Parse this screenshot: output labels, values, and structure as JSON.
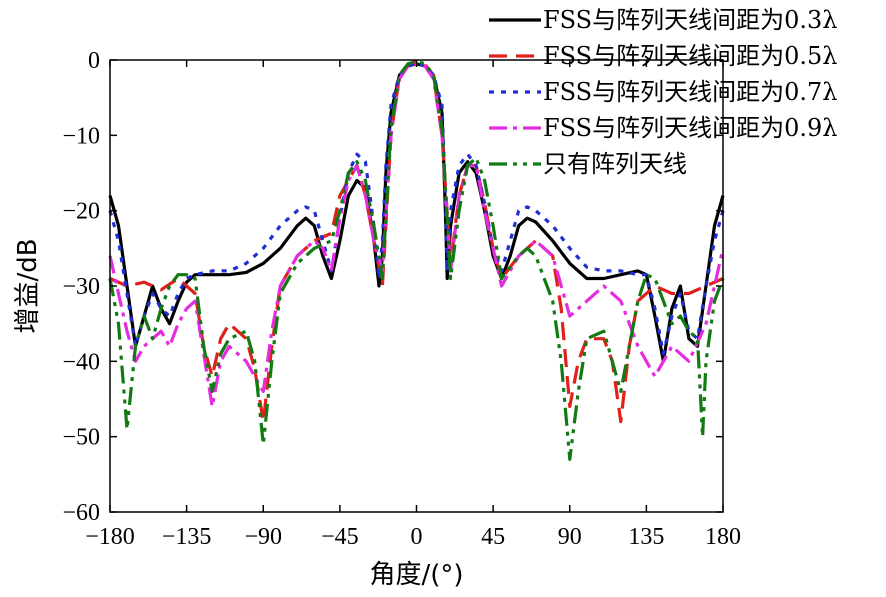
{
  "chart_data": {
    "type": "line",
    "xlabel": "角度/(°)",
    "ylabel": "增益/dB",
    "xlim": [
      -180,
      180
    ],
    "ylim": [
      -60,
      0
    ],
    "xticks": [
      "−180",
      "−135",
      "−90",
      "−45",
      "0",
      "45",
      "90",
      "135",
      "180"
    ],
    "xtick_values": [
      -180,
      -135,
      -90,
      -45,
      0,
      45,
      90,
      135,
      180
    ],
    "yticks": [
      "0",
      "−10",
      "−20",
      "−30",
      "−40",
      "−50",
      "−60"
    ],
    "ytick_values": [
      0,
      -10,
      -20,
      -30,
      -40,
      -50,
      -60
    ],
    "grid": false,
    "legend_position": "top-right",
    "series": [
      {
        "name": "FSS与阵列天线间距为0.3λ",
        "color": "#000000",
        "dash": "solid",
        "x": [
          -180,
          -175,
          -170,
          -165,
          -160,
          -155,
          -150,
          -145,
          -140,
          -135,
          -130,
          -120,
          -110,
          -100,
          -90,
          -80,
          -70,
          -65,
          -60,
          -55,
          -50,
          -45,
          -40,
          -35,
          -30,
          -25,
          -22,
          -20,
          -18,
          -15,
          -10,
          -5,
          0,
          5,
          10,
          15,
          17,
          18,
          20,
          25,
          30,
          35,
          40,
          45,
          50,
          55,
          60,
          65,
          70,
          80,
          90,
          100,
          110,
          120,
          130,
          135,
          140,
          145,
          150,
          155,
          160,
          165,
          170,
          175,
          180
        ],
        "y": [
          -18,
          -22,
          -30,
          -38,
          -34,
          -30,
          -33,
          -35,
          -32,
          -29.5,
          -28.5,
          -28.5,
          -28.5,
          -28.2,
          -27,
          -25,
          -22,
          -21,
          -22,
          -26,
          -29,
          -24,
          -18,
          -16,
          -17,
          -24,
          -30,
          -26,
          -15,
          -7,
          -2,
          -0.8,
          -0.5,
          -0.8,
          -2,
          -7,
          -20,
          -29,
          -22,
          -15,
          -13.5,
          -15,
          -20,
          -26,
          -29,
          -26,
          -22,
          -21,
          -21.5,
          -24,
          -27,
          -29,
          -29,
          -28.5,
          -28,
          -28.5,
          -34,
          -40,
          -33,
          -30,
          -37,
          -38,
          -30,
          -22,
          -18
        ]
      },
      {
        "name": "FSS与阵列天线间距为0.5λ",
        "color": "#e0211b",
        "dash": "18,9",
        "x": [
          -180,
          -170,
          -160,
          -150,
          -140,
          -130,
          -125,
          -120,
          -115,
          -110,
          -100,
          -95,
          -90,
          -85,
          -80,
          -70,
          -60,
          -50,
          -45,
          -40,
          -35,
          -30,
          -25,
          -20,
          -15,
          -10,
          -5,
          0,
          5,
          10,
          15,
          20,
          25,
          30,
          35,
          40,
          45,
          50,
          60,
          70,
          80,
          85,
          90,
          95,
          100,
          110,
          115,
          120,
          125,
          130,
          140,
          150,
          160,
          170,
          180
        ],
        "y": [
          -29,
          -30,
          -29.5,
          -30.5,
          -29,
          -31,
          -38,
          -42,
          -37,
          -35,
          -37,
          -41,
          -48,
          -38,
          -30,
          -26,
          -24,
          -23,
          -18,
          -16,
          -14,
          -18,
          -24,
          -30,
          -10,
          -2,
          -0.6,
          -0.2,
          -0.6,
          -2,
          -10,
          -27,
          -18,
          -14,
          -14,
          -19,
          -25,
          -29,
          -26,
          -24,
          -26,
          -33,
          -46,
          -40,
          -37,
          -37,
          -40,
          -48,
          -38,
          -32,
          -30,
          -31,
          -31,
          -30,
          -29
        ]
      },
      {
        "name": "FSS与阵列天线间距为0.7λ",
        "color": "#1f2fd6",
        "dash": "5,7",
        "x": [
          -180,
          -175,
          -170,
          -165,
          -160,
          -155,
          -150,
          -145,
          -140,
          -135,
          -130,
          -120,
          -110,
          -100,
          -90,
          -80,
          -70,
          -65,
          -60,
          -55,
          -50,
          -45,
          -40,
          -35,
          -30,
          -25,
          -22,
          -20,
          -18,
          -15,
          -10,
          -5,
          0,
          5,
          10,
          15,
          17,
          18,
          20,
          25,
          30,
          35,
          40,
          45,
          50,
          55,
          60,
          65,
          70,
          80,
          90,
          100,
          110,
          120,
          130,
          135,
          140,
          145,
          150,
          155,
          160,
          165,
          170,
          175,
          180
        ],
        "y": [
          -20,
          -24,
          -31,
          -38,
          -34,
          -31,
          -33,
          -34,
          -31,
          -29,
          -28.5,
          -28,
          -28,
          -27,
          -25,
          -22,
          -20,
          -19.5,
          -20,
          -24,
          -28,
          -21,
          -15,
          -12.5,
          -13.5,
          -22,
          -29,
          -24,
          -14,
          -6,
          -2,
          -0.8,
          -0.4,
          -0.8,
          -2,
          -6,
          -18,
          -28,
          -20,
          -14,
          -12.5,
          -14,
          -19,
          -25,
          -28,
          -24,
          -20,
          -19.5,
          -20,
          -22,
          -25,
          -27.5,
          -28,
          -28,
          -28.5,
          -28.5,
          -33,
          -39,
          -34,
          -31,
          -36,
          -37,
          -30,
          -24,
          -20
        ]
      },
      {
        "name": "FSS与阵列天线间距为0.9λ",
        "color": "#e62ce0",
        "dash": "18,6,4,6",
        "x": [
          -180,
          -170,
          -165,
          -160,
          -150,
          -145,
          -140,
          -135,
          -130,
          -125,
          -120,
          -115,
          -110,
          -100,
          -95,
          -90,
          -85,
          -80,
          -70,
          -60,
          -55,
          -50,
          -45,
          -40,
          -35,
          -30,
          -25,
          -20,
          -15,
          -10,
          -5,
          0,
          5,
          10,
          15,
          20,
          25,
          30,
          35,
          40,
          45,
          50,
          60,
          70,
          80,
          90,
          100,
          110,
          120,
          130,
          140,
          145,
          150,
          160,
          170,
          175,
          180
        ],
        "y": [
          -26,
          -36,
          -40,
          -38,
          -36,
          -38,
          -35,
          -33,
          -32,
          -39,
          -46,
          -40,
          -38,
          -40,
          -42,
          -44,
          -36,
          -30,
          -26,
          -24,
          -25,
          -28,
          -21,
          -16,
          -14,
          -18,
          -24,
          -28,
          -10,
          -2.5,
          -0.8,
          -0.5,
          -0.8,
          -2.5,
          -10,
          -28,
          -18,
          -14,
          -14,
          -20,
          -25,
          -30,
          -26,
          -24,
          -26,
          -34,
          -32,
          -30,
          -32,
          -38,
          -42,
          -40,
          -38,
          -40,
          -35,
          -30,
          -25
        ]
      },
      {
        "name": "只有阵列天线",
        "color": "#127a12",
        "dash": "18,6,4,6,4,6",
        "x": [
          -180,
          -175,
          -170,
          -165,
          -160,
          -155,
          -150,
          -145,
          -140,
          -135,
          -130,
          -125,
          -120,
          -115,
          -110,
          -100,
          -95,
          -90,
          -85,
          -80,
          -70,
          -60,
          -50,
          -45,
          -40,
          -35,
          -30,
          -25,
          -20,
          -15,
          -10,
          -5,
          0,
          5,
          10,
          15,
          20,
          25,
          30,
          35,
          40,
          45,
          50,
          60,
          65,
          70,
          80,
          85,
          90,
          95,
          100,
          110,
          120,
          125,
          130,
          135,
          140,
          145,
          150,
          155,
          160,
          165,
          168,
          170,
          175,
          180
        ],
        "y": [
          -29,
          -35,
          -49,
          -38,
          -34,
          -37,
          -33,
          -30,
          -28.5,
          -28.5,
          -29,
          -38,
          -44,
          -39,
          -37,
          -36,
          -40,
          -51,
          -40,
          -31,
          -27,
          -25,
          -24,
          -20,
          -15,
          -13.5,
          -16,
          -22,
          -29,
          -9,
          -2,
          -0.5,
          -0.2,
          -0.5,
          -2,
          -9,
          -29,
          -20,
          -14,
          -13,
          -16,
          -22,
          -29,
          -26,
          -25,
          -26,
          -32,
          -40,
          -53,
          -44,
          -37,
          -36,
          -44,
          -38,
          -32,
          -28.5,
          -29,
          -32,
          -35,
          -34,
          -36,
          -37,
          -50,
          -40,
          -32,
          -29
        ]
      }
    ]
  }
}
